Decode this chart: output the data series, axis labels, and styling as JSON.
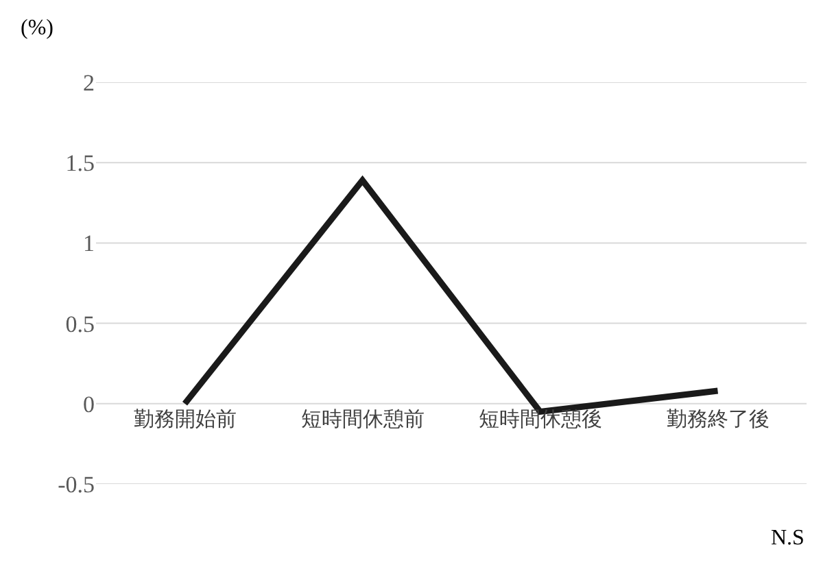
{
  "chart_data": {
    "type": "line",
    "ylabel": "(%)",
    "categories": [
      "勤務開始前",
      "短時間休憩前",
      "短時間休憩後",
      "勤務終了後"
    ],
    "series": [
      {
        "color": "#1a1a1a",
        "values": [
          0,
          1.39,
          -0.05,
          0.08
        ]
      }
    ],
    "ylim": [
      -0.5,
      2
    ],
    "yticks": [
      -0.5,
      0,
      0.5,
      1,
      1.5,
      2
    ],
    "grid": "y",
    "marker": "none",
    "line_style": "solid",
    "annotations": [
      "N.S"
    ]
  }
}
